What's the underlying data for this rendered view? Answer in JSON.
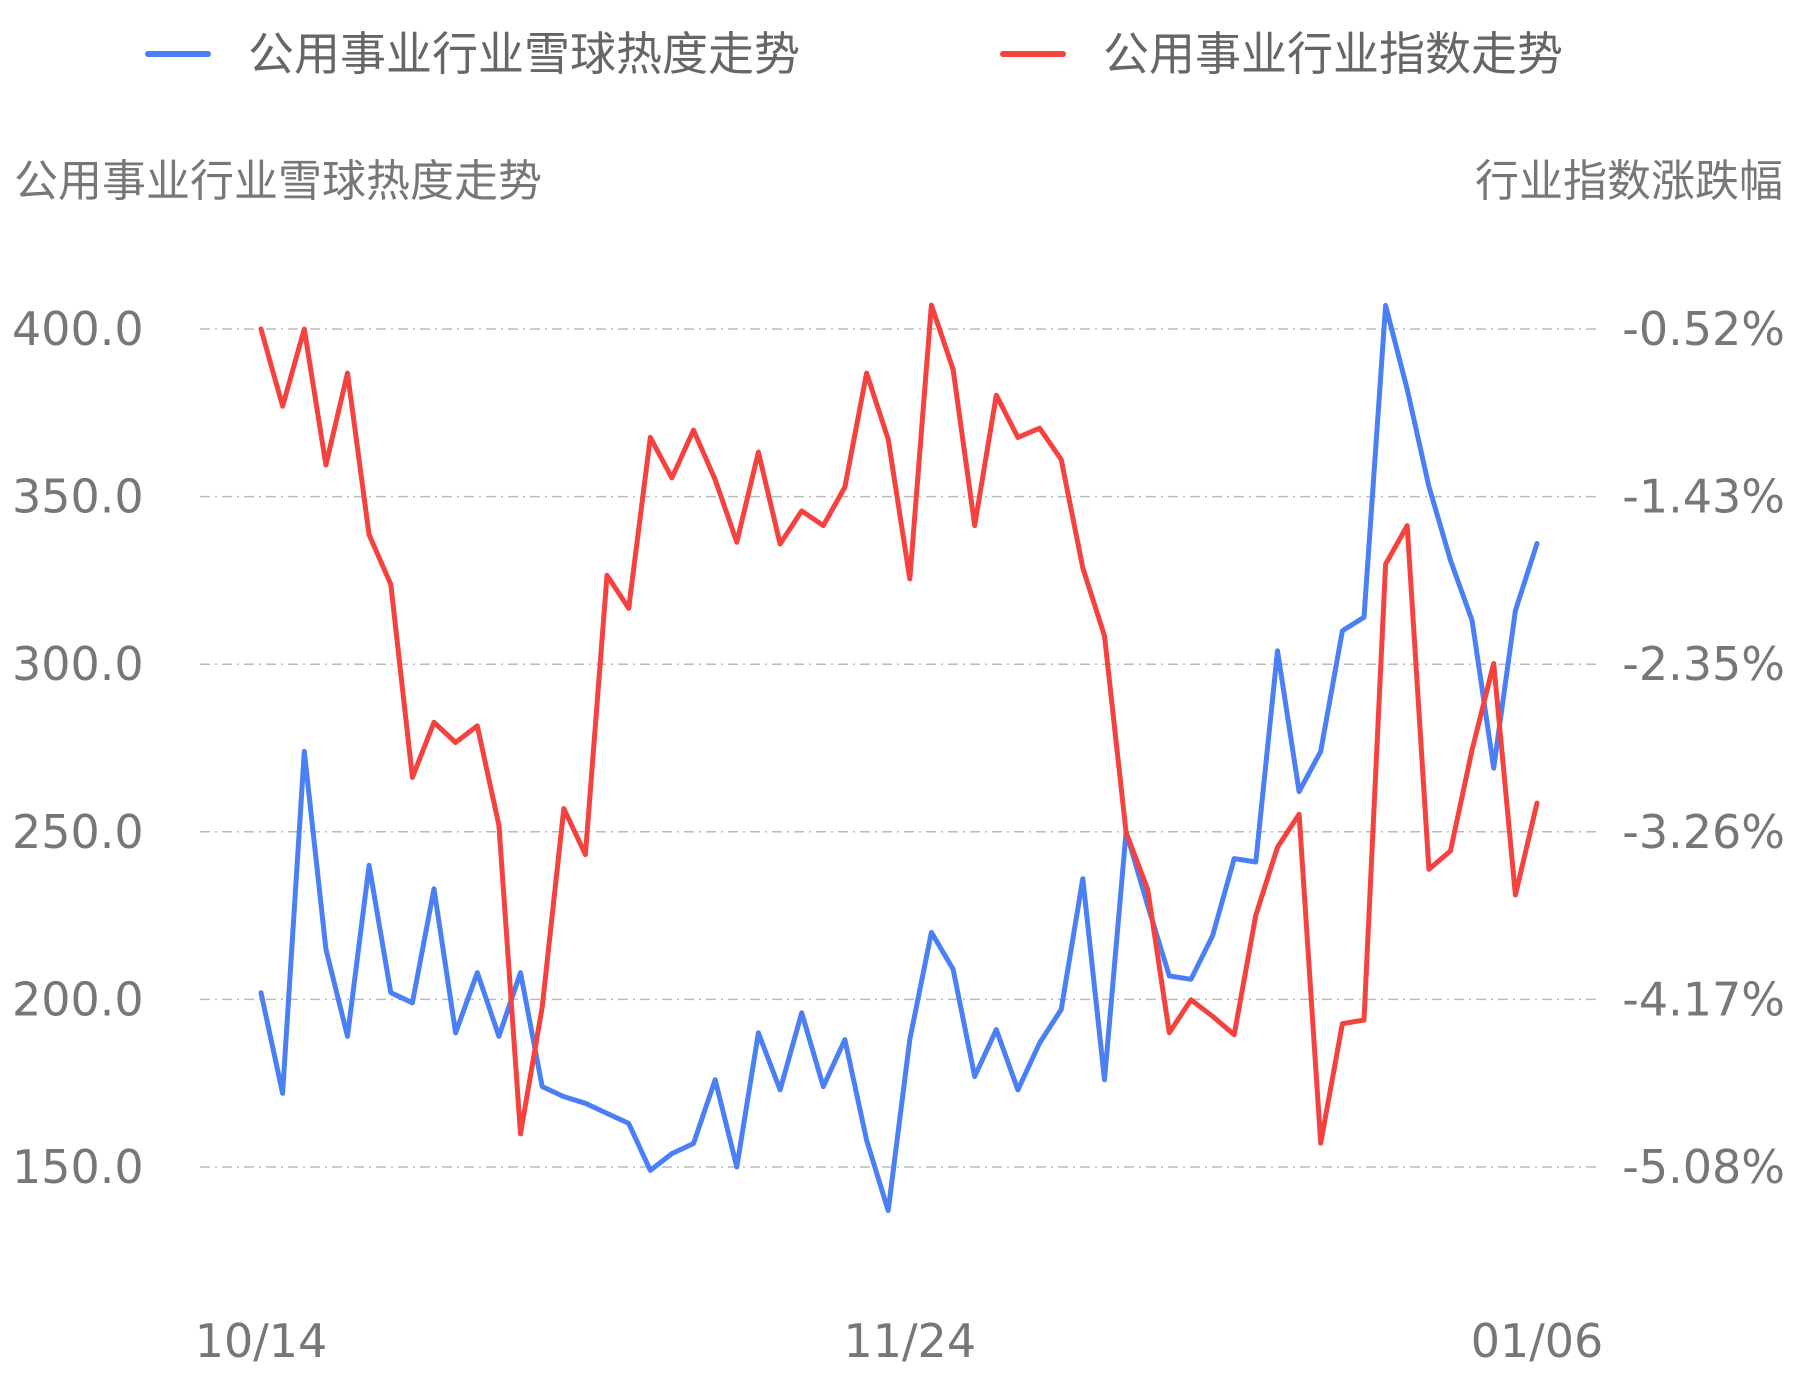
{
  "chart_data": {
    "type": "line",
    "legend_position": "top",
    "grid": true,
    "left_axis_title": "公用事业行业雪球热度走势",
    "right_axis_title": "行业指数涨跌幅",
    "x_tick_labels": [
      "10/14",
      "11/24",
      "01/06"
    ],
    "y_left_ticks": [
      "400.0",
      "350.0",
      "300.0",
      "250.0",
      "200.0",
      "150.0"
    ],
    "y_right_ticks": [
      "-0.52%",
      "-1.43%",
      "-2.35%",
      "-3.26%",
      "-4.17%",
      "-5.08%"
    ],
    "y_left_range": [
      150,
      400
    ],
    "y_right_range": [
      -5.08,
      -0.52
    ],
    "series": [
      {
        "name": "公用事业行业雪球热度走势",
        "axis": "left",
        "color": "#4a7ff5",
        "values": [
          202,
          172,
          274,
          215,
          189,
          240,
          202,
          199,
          233,
          190,
          208,
          189,
          208,
          174,
          171,
          169,
          166,
          163,
          149,
          154,
          157,
          176,
          150,
          190,
          173,
          196,
          174,
          188,
          158,
          137,
          188,
          220,
          209,
          177,
          191,
          173,
          187,
          197,
          236,
          176,
          250,
          228,
          207,
          206,
          219,
          242,
          241,
          304,
          262,
          274,
          310,
          314,
          407,
          382,
          353,
          331,
          313,
          269,
          316,
          336
        ]
      },
      {
        "name": "公用事业行业指数走势",
        "axis": "right",
        "color": "#f5423f",
        "values": [
          -0.52,
          -0.94,
          -0.52,
          -1.26,
          -0.76,
          -1.64,
          -1.91,
          -2.96,
          -2.66,
          -2.77,
          -2.68,
          -3.22,
          -4.9,
          -4.21,
          -3.13,
          -3.38,
          -1.86,
          -2.04,
          -1.11,
          -1.33,
          -1.07,
          -1.34,
          -1.68,
          -1.19,
          -1.69,
          -1.51,
          -1.59,
          -1.38,
          -0.76,
          -1.12,
          -1.88,
          -0.39,
          -0.74,
          -1.59,
          -0.88,
          -1.11,
          -1.06,
          -1.23,
          -1.82,
          -2.19,
          -3.26,
          -3.57,
          -4.35,
          -4.17,
          -4.26,
          -4.36,
          -3.71,
          -3.34,
          -3.16,
          -4.95,
          -4.3,
          -4.28,
          -1.8,
          -1.59,
          -3.46,
          -3.36,
          -2.81,
          -2.34,
          -3.6,
          -3.1
        ]
      }
    ]
  }
}
